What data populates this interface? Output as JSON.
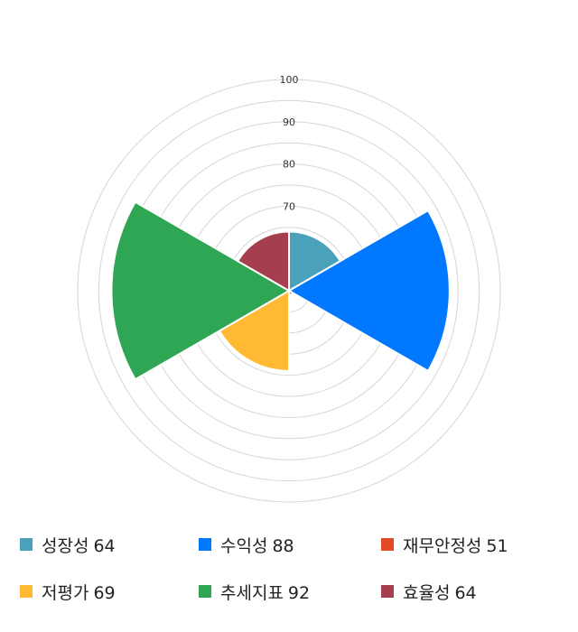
{
  "chart_data": {
    "type": "polar-area",
    "radial_axis": {
      "min": 50,
      "max": 100,
      "ticks": [
        70,
        80,
        90,
        100
      ]
    },
    "categories": [
      "성장성",
      "수익성",
      "재무안정성",
      "저평가",
      "추세지표",
      "효율성"
    ],
    "values": [
      64,
      88,
      51,
      69,
      92,
      64
    ],
    "colors": [
      "#4aa1b9",
      "#0078ff",
      "#e24b26",
      "#ffb933",
      "#2fa654",
      "#a53f4f"
    ],
    "grid": true,
    "legend_position": "bottom"
  }
}
